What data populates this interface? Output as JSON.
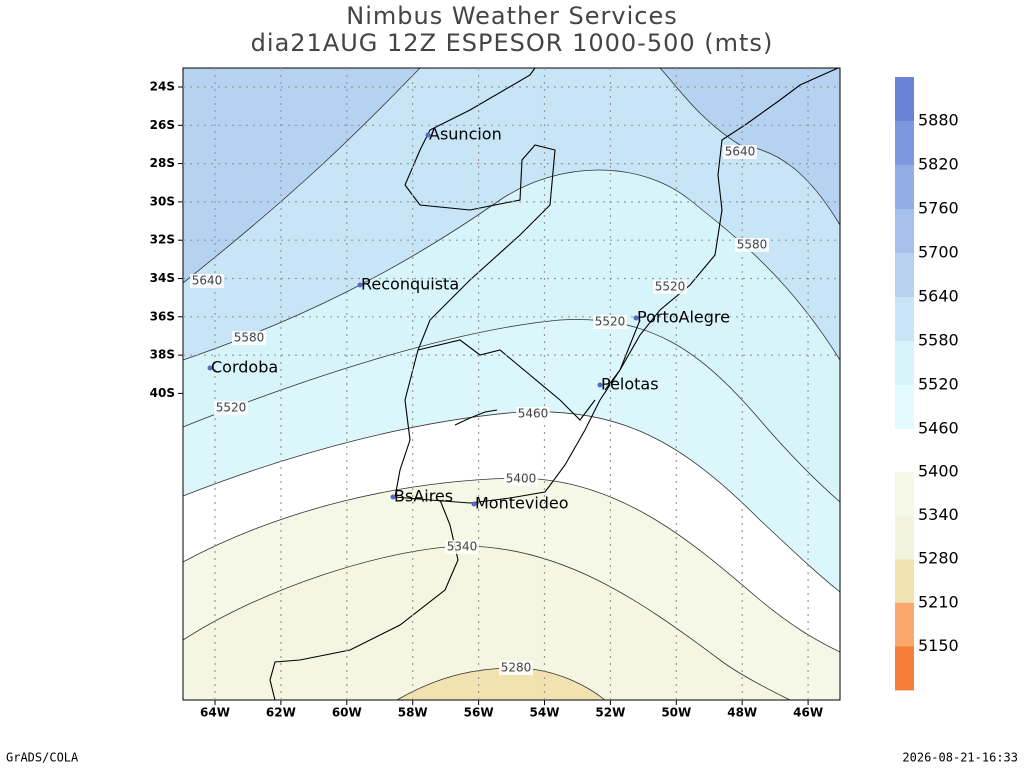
{
  "header": {
    "title": "Nimbus Weather Services",
    "subtitle": "dia21AUG 12Z ESPESOR 1000-500 (mts)"
  },
  "map": {
    "lat_labels": [
      "24S",
      "26S",
      "28S",
      "30S",
      "32S",
      "34S",
      "36S",
      "38S",
      "40S"
    ],
    "lon_labels": [
      "64W",
      "62W",
      "60W",
      "58W",
      "56W",
      "54W",
      "52W",
      "50W",
      "48W",
      "46W"
    ],
    "cities": [
      "Asuncion",
      "Reconquista",
      "PortoAlegre",
      "Cordoba",
      "Pelotas",
      "BsAires",
      "Montevideo"
    ],
    "contour_labels": [
      5640,
      5640,
      5580,
      5580,
      5520,
      5520,
      5520,
      5460,
      5400,
      5340,
      5280
    ]
  },
  "legend": {
    "levels": [
      5880,
      5820,
      5760,
      5700,
      5640,
      5580,
      5520,
      5460,
      5400,
      5340,
      5280,
      5210,
      5150
    ],
    "colors": [
      "#6b83d6",
      "#7e98df",
      "#93ade7",
      "#a5c1eb",
      "#b5d3f0",
      "#c7e5f6",
      "#d7f4fb",
      "#e3fbfd",
      "#f6f8e7",
      "#f3f4dc",
      "#f2e2b1",
      "#f8a86a",
      "#f57f3a"
    ]
  },
  "footer": {
    "left": "GrADS/COLA",
    "right": "2026-08-21-16:33"
  }
}
